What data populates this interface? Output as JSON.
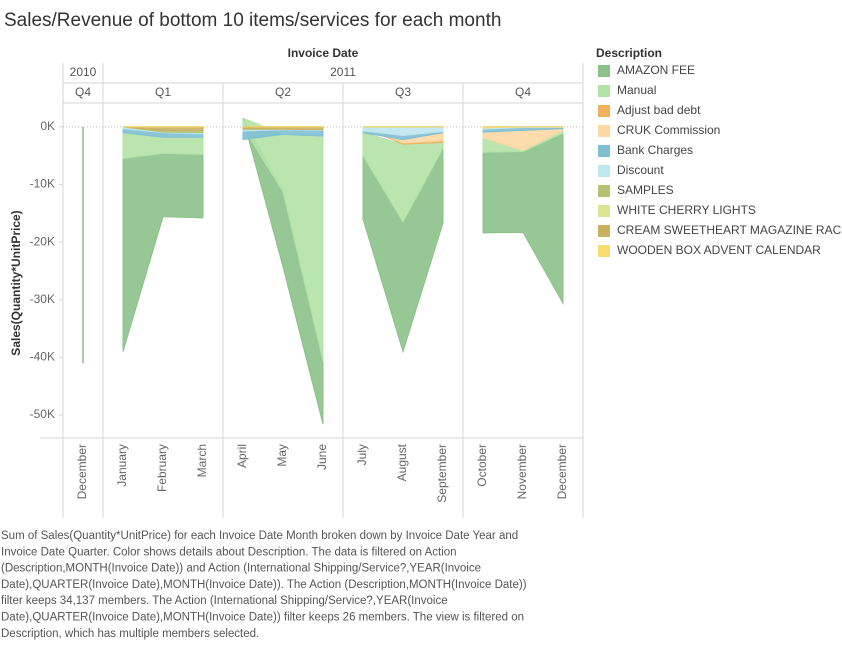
{
  "chart_data": {
    "type": "area",
    "title": "Sales/Revenue of bottom 10 items/services for each month",
    "header_title": "Invoice Date",
    "years": [
      {
        "label": "2010",
        "quarters": [
          {
            "label": "Q4",
            "months": [
              "December"
            ]
          }
        ]
      },
      {
        "label": "2011",
        "quarters": [
          {
            "label": "Q1",
            "months": [
              "January",
              "February",
              "March"
            ]
          },
          {
            "label": "Q2",
            "months": [
              "April",
              "May",
              "June"
            ]
          },
          {
            "label": "Q3",
            "months": [
              "July",
              "August",
              "September"
            ]
          },
          {
            "label": "Q4",
            "months": [
              "October",
              "November",
              "December"
            ]
          }
        ]
      }
    ],
    "y_label": "Sales(Quantity*UnitPrice)",
    "ylim": [
      -54000,
      3800
    ],
    "yticks": [
      {
        "value": 0,
        "label": "0K"
      },
      {
        "value": -10000,
        "label": "-10K"
      },
      {
        "value": -20000,
        "label": "-20K"
      },
      {
        "value": -30000,
        "label": "-30K"
      },
      {
        "value": -40000,
        "label": "-40K"
      },
      {
        "value": -50000,
        "label": "-50K"
      }
    ],
    "legend_title": "Description",
    "series": [
      {
        "name": "AMAZON FEE",
        "color": "#8cc18a",
        "values": [
          -41000,
          -33500,
          -11000,
          -11000,
          0,
          -13000,
          -11000,
          -11000,
          -22500,
          -13000,
          -14000,
          -14000,
          -29500
        ]
      },
      {
        "name": "Manual",
        "color": "#b2e2a6",
        "values": [
          0,
          -4500,
          -2800,
          -3000,
          1500,
          -10000,
          -39000,
          -4000,
          -13500,
          -1000,
          -2500,
          -200,
          -500
        ]
      },
      {
        "name": "Adjust bad debt",
        "color": "#f0b15f",
        "values": [
          0,
          0,
          0,
          0,
          0,
          0,
          0,
          0,
          -200,
          -300,
          0,
          0,
          0
        ]
      },
      {
        "name": "CRUK Commission",
        "color": "#fcd8a3",
        "values": [
          0,
          0,
          0,
          0,
          0,
          0,
          0,
          0,
          -600,
          -1400,
          -1000,
          -3500,
          -300
        ]
      },
      {
        "name": "Bank Charges",
        "color": "#7fbfd4",
        "values": [
          0,
          -700,
          -800,
          -600,
          -1500,
          -800,
          -1000,
          -300,
          -700,
          -200,
          -500,
          -500,
          -200
        ]
      },
      {
        "name": "Discount",
        "color": "#bde6ef",
        "values": [
          0,
          -300,
          -100,
          -200,
          -300,
          -100,
          -100,
          -700,
          -1500,
          -800,
          -200,
          -100,
          -100
        ]
      },
      {
        "name": "SAMPLES",
        "color": "#b8c074",
        "values": [
          0,
          0,
          -300,
          -400,
          0,
          0,
          0,
          0,
          0,
          0,
          0,
          0,
          0
        ]
      },
      {
        "name": "WHITE CHERRY LIGHTS",
        "color": "#dbe493",
        "values": [
          0,
          0,
          0,
          0,
          0,
          0,
          0,
          0,
          0,
          0,
          -100,
          0,
          0
        ]
      },
      {
        "name": "CREAM SWEETHEART MAGAZINE RACK",
        "color": "#c8b262",
        "values": [
          0,
          0,
          -600,
          -600,
          -400,
          -400,
          -500,
          0,
          0,
          0,
          0,
          0,
          0
        ]
      },
      {
        "name": "WOODEN BOX ADVENT CALENDAR",
        "color": "#f7dc6f",
        "values": [
          0,
          0,
          0,
          0,
          0,
          0,
          0,
          0,
          0,
          0,
          -100,
          0,
          0
        ]
      }
    ],
    "caption": [
      "Sum of Sales(Quantity*UnitPrice) for each Invoice Date Month broken down by Invoice Date Year and",
      "Invoice Date Quarter.  Color shows details about Description. The data is filtered on Action",
      "(Description,MONTH(Invoice Date)) and Action (International Shipping/Service?,YEAR(Invoice",
      "Date),QUARTER(Invoice Date),MONTH(Invoice Date)). The Action (Description,MONTH(Invoice Date))",
      "filter keeps 34,137 members. The Action (International Shipping/Service?,YEAR(Invoice",
      "Date),QUARTER(Invoice Date),MONTH(Invoice Date)) filter keeps 26 members. The view is filtered on",
      "Description, which has multiple members selected."
    ]
  }
}
